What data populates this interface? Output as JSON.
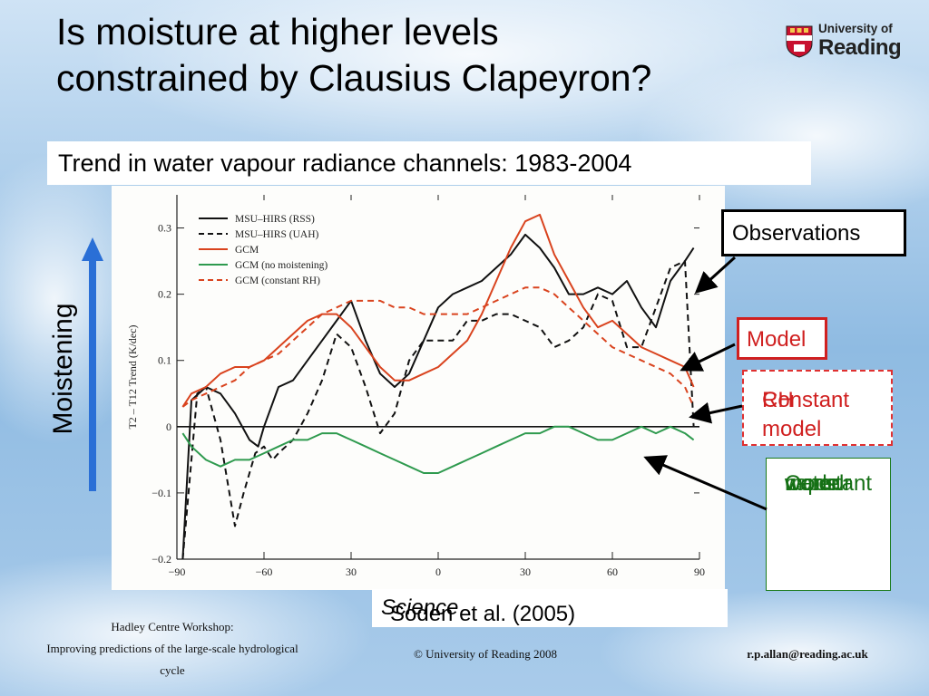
{
  "slide": {
    "title_line1": "Is moisture at higher levels",
    "title_line2": "constrained by Clausius Clapeyron?",
    "subtitle": "Trend in water vapour radiance channels: 1983-2004",
    "logo_line1": "University of",
    "logo_line2": "Reading",
    "moistening_label": "Moistening",
    "citation_prefix": "Soden et al. (2005) ",
    "citation_journal": "Science",
    "footer_left_1": "Hadley Centre Workshop:",
    "footer_left_2": "Improving predictions of the large-scale hydrological",
    "footer_left_3": "cycle",
    "footer_center": "© University of Reading 2008",
    "footer_right": "r.p.allan@reading.ac.uk",
    "arrow_color": "#2a6fd6"
  },
  "callouts": {
    "observations": "Observations",
    "model": "Model",
    "constant_rh_1": "Constant",
    "constant_rh_2": "RH model",
    "cwv_1": "Constant",
    "cwv_2": "water",
    "cwv_3": "vapour",
    "cwv_4": "model"
  },
  "chart_data": {
    "type": "line",
    "title": "",
    "xlabel": "",
    "ylabel": "T2 – T12 Trend (K/dec)",
    "xlim": [
      -90,
      90
    ],
    "ylim": [
      -0.2,
      0.35
    ],
    "x_ticks": [
      -90,
      -60,
      30,
      0,
      30,
      60,
      90
    ],
    "x_tick_labels": [
      "−90",
      "−60",
      "30",
      "0",
      "30",
      "60",
      "90"
    ],
    "y_ticks": [
      -0.2,
      -0.1,
      0,
      0.1,
      0.2,
      0.3
    ],
    "y_tick_labels": [
      "−0.2",
      "−0.1",
      "0",
      "0.1",
      "0.2",
      "0.3"
    ],
    "zero_line": true,
    "legend_position": "top-left",
    "series": [
      {
        "name": "MSU–HIRS (RSS)",
        "color": "#111111",
        "dash": "solid",
        "x": [
          -88,
          -85,
          -80,
          -75,
          -70,
          -65,
          -62,
          -60,
          -55,
          -50,
          -45,
          -40,
          -35,
          -30,
          -25,
          -20,
          -15,
          -10,
          -5,
          0,
          5,
          10,
          15,
          20,
          25,
          30,
          35,
          40,
          45,
          50,
          55,
          60,
          65,
          70,
          75,
          80,
          85,
          88
        ],
        "y": [
          -0.2,
          0.04,
          0.06,
          0.05,
          0.02,
          -0.02,
          -0.03,
          0.0,
          0.06,
          0.07,
          0.1,
          0.13,
          0.16,
          0.19,
          0.13,
          0.08,
          0.06,
          0.08,
          0.13,
          0.18,
          0.2,
          0.21,
          0.22,
          0.24,
          0.26,
          0.29,
          0.27,
          0.24,
          0.2,
          0.2,
          0.21,
          0.2,
          0.22,
          0.18,
          0.15,
          0.22,
          0.25,
          0.27
        ]
      },
      {
        "name": "MSU–HIRS (UAH)",
        "color": "#111111",
        "dash": "dashed",
        "x": [
          -88,
          -86,
          -83,
          -80,
          -75,
          -70,
          -67,
          -63,
          -60,
          -57,
          -55,
          -50,
          -45,
          -40,
          -35,
          -30,
          -25,
          -20,
          -15,
          -10,
          -5,
          0,
          5,
          10,
          15,
          20,
          25,
          30,
          35,
          40,
          45,
          50,
          55,
          60,
          65,
          70,
          75,
          80,
          85,
          88
        ],
        "y": [
          -0.2,
          -0.1,
          0.05,
          0.06,
          -0.02,
          -0.15,
          -0.1,
          -0.04,
          -0.03,
          -0.05,
          -0.04,
          -0.02,
          0.02,
          0.07,
          0.14,
          0.12,
          0.06,
          -0.01,
          0.02,
          0.1,
          0.13,
          0.13,
          0.13,
          0.16,
          0.16,
          0.17,
          0.17,
          0.16,
          0.15,
          0.12,
          0.13,
          0.15,
          0.2,
          0.19,
          0.12,
          0.12,
          0.18,
          0.24,
          0.25,
          0.0
        ]
      },
      {
        "name": "GCM",
        "color": "#d9431e",
        "dash": "solid",
        "x": [
          -88,
          -85,
          -80,
          -75,
          -70,
          -65,
          -60,
          -55,
          -50,
          -45,
          -40,
          -35,
          -30,
          -25,
          -20,
          -15,
          -10,
          -5,
          0,
          5,
          10,
          15,
          20,
          25,
          30,
          35,
          40,
          45,
          50,
          55,
          60,
          65,
          70,
          75,
          80,
          85,
          88
        ],
        "y": [
          0.03,
          0.05,
          0.06,
          0.08,
          0.09,
          0.09,
          0.1,
          0.12,
          0.14,
          0.16,
          0.17,
          0.17,
          0.15,
          0.12,
          0.09,
          0.07,
          0.07,
          0.08,
          0.09,
          0.11,
          0.13,
          0.17,
          0.22,
          0.27,
          0.31,
          0.32,
          0.26,
          0.22,
          0.18,
          0.15,
          0.16,
          0.14,
          0.12,
          0.11,
          0.1,
          0.09,
          0.06
        ]
      },
      {
        "name": "GCM (no moistening)",
        "color": "#2e9a4e",
        "dash": "solid",
        "x": [
          -88,
          -85,
          -80,
          -75,
          -70,
          -65,
          -60,
          -55,
          -50,
          -45,
          -40,
          -35,
          -30,
          -25,
          -20,
          -15,
          -10,
          -5,
          0,
          5,
          10,
          15,
          20,
          25,
          30,
          35,
          40,
          45,
          50,
          55,
          60,
          65,
          70,
          75,
          80,
          85,
          88
        ],
        "y": [
          -0.01,
          -0.03,
          -0.05,
          -0.06,
          -0.05,
          -0.05,
          -0.04,
          -0.03,
          -0.02,
          -0.02,
          -0.01,
          -0.01,
          -0.02,
          -0.03,
          -0.04,
          -0.05,
          -0.06,
          -0.07,
          -0.07,
          -0.06,
          -0.05,
          -0.04,
          -0.03,
          -0.02,
          -0.01,
          -0.01,
          0.0,
          0.0,
          -0.01,
          -0.02,
          -0.02,
          -0.01,
          0.0,
          -0.01,
          0.0,
          -0.01,
          -0.02
        ]
      },
      {
        "name": "GCM (constant RH)",
        "color": "#d9431e",
        "dash": "dashed",
        "x": [
          -88,
          -85,
          -80,
          -75,
          -70,
          -65,
          -60,
          -55,
          -50,
          -45,
          -40,
          -35,
          -30,
          -25,
          -20,
          -15,
          -10,
          -5,
          0,
          5,
          10,
          15,
          20,
          25,
          30,
          35,
          40,
          45,
          50,
          55,
          60,
          65,
          70,
          75,
          80,
          85,
          88
        ],
        "y": [
          0.03,
          0.04,
          0.05,
          0.06,
          0.07,
          0.09,
          0.1,
          0.11,
          0.13,
          0.15,
          0.17,
          0.18,
          0.19,
          0.19,
          0.19,
          0.18,
          0.18,
          0.17,
          0.17,
          0.17,
          0.17,
          0.18,
          0.19,
          0.2,
          0.21,
          0.21,
          0.2,
          0.18,
          0.16,
          0.14,
          0.12,
          0.11,
          0.1,
          0.09,
          0.08,
          0.06,
          0.03
        ]
      }
    ]
  }
}
